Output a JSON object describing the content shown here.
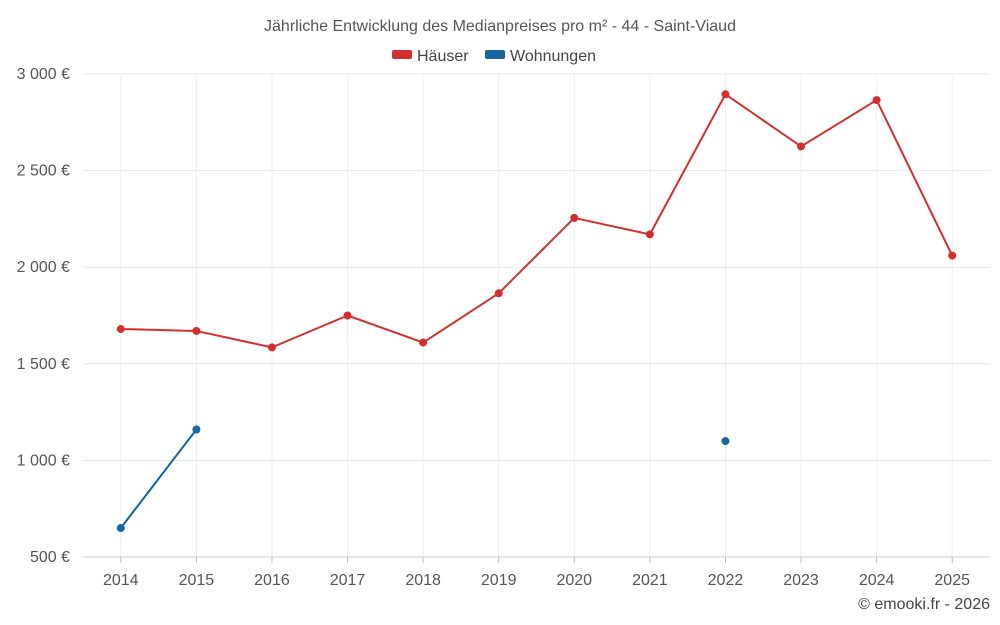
{
  "chart_data": {
    "type": "line",
    "title": "Jährliche Entwicklung des Medianpreises pro m² - 44 - Saint-Viaud",
    "categories": [
      "2014",
      "2015",
      "2016",
      "2017",
      "2018",
      "2019",
      "2020",
      "2021",
      "2022",
      "2023",
      "2024",
      "2025"
    ],
    "series": [
      {
        "name": "Häuser",
        "color": "#d32f2f",
        "values": [
          1680,
          1670,
          1585,
          1750,
          1610,
          1865,
          2255,
          2170,
          2895,
          2625,
          2865,
          2060
        ]
      },
      {
        "name": "Wohnungen",
        "color": "#1565a0",
        "values": [
          650,
          1160,
          null,
          null,
          null,
          null,
          null,
          null,
          1100,
          null,
          null,
          null
        ]
      }
    ],
    "yticks": [
      "500 €",
      "1 000 €",
      "1 500 €",
      "2 000 €",
      "2 500 €",
      "3 000 €"
    ],
    "ytick_values": [
      500,
      1000,
      1500,
      2000,
      2500,
      3000
    ],
    "ylim": [
      500,
      3000
    ],
    "grid": true,
    "legend_position": "top-center",
    "credit": "© emooki.fr - 2026"
  }
}
